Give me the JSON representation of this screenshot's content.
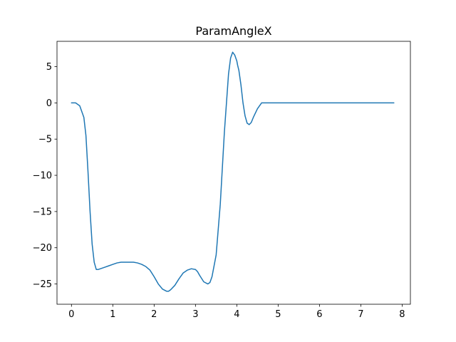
{
  "chart_data": {
    "type": "line",
    "title": "ParamAngleX",
    "xlabel": "",
    "ylabel": "",
    "xlim": [
      -0.35,
      8.2
    ],
    "ylim": [
      -27.8,
      8.5
    ],
    "grid": false,
    "x_ticks": [
      0,
      1,
      2,
      3,
      4,
      5,
      6,
      7,
      8
    ],
    "x_tick_labels": [
      "0",
      "1",
      "2",
      "3",
      "4",
      "5",
      "6",
      "7",
      "8"
    ],
    "y_ticks": [
      5,
      0,
      -5,
      -10,
      -15,
      -20,
      -25
    ],
    "y_tick_labels": [
      "5",
      "0",
      "−5",
      "−10",
      "−15",
      "−20",
      "−25"
    ],
    "series": [
      {
        "color": "#1f77b4",
        "x": [
          0,
          0.1,
          0.2,
          0.3,
          0.35,
          0.4,
          0.45,
          0.5,
          0.55,
          0.6,
          0.65,
          0.7,
          0.8,
          0.9,
          1.0,
          1.1,
          1.2,
          1.3,
          1.4,
          1.5,
          1.6,
          1.7,
          1.8,
          1.9,
          2.0,
          2.1,
          2.2,
          2.3,
          2.35,
          2.4,
          2.5,
          2.6,
          2.7,
          2.8,
          2.9,
          3.0,
          3.05,
          3.1,
          3.2,
          3.3,
          3.35,
          3.4,
          3.5,
          3.6,
          3.7,
          3.8,
          3.85,
          3.9,
          3.95,
          4.0,
          4.02,
          4.05,
          4.1,
          4.15,
          4.2,
          4.25,
          4.3,
          4.35,
          4.4,
          4.5,
          4.6,
          4.65,
          5.0,
          6.0,
          7.0,
          7.8
        ],
        "y": [
          0,
          0,
          -0.4,
          -2.0,
          -4.5,
          -9.5,
          -15.0,
          -19.5,
          -22.0,
          -23.0,
          -23.0,
          -22.9,
          -22.7,
          -22.5,
          -22.3,
          -22.1,
          -22.0,
          -22.0,
          -22.0,
          -22.0,
          -22.1,
          -22.3,
          -22.6,
          -23.1,
          -24.0,
          -25.0,
          -25.7,
          -26.0,
          -26.0,
          -25.8,
          -25.2,
          -24.3,
          -23.5,
          -23.1,
          -22.9,
          -23.0,
          -23.3,
          -23.8,
          -24.7,
          -25.0,
          -24.8,
          -24.0,
          -21.0,
          -14.0,
          -4.0,
          4.0,
          6.2,
          7.0,
          6.6,
          5.8,
          5.2,
          4.5,
          2.5,
          0.0,
          -1.8,
          -2.8,
          -3.0,
          -2.7,
          -2.0,
          -0.8,
          0.0,
          0.0,
          0.0,
          0.0,
          0.0,
          0.0
        ]
      }
    ]
  }
}
